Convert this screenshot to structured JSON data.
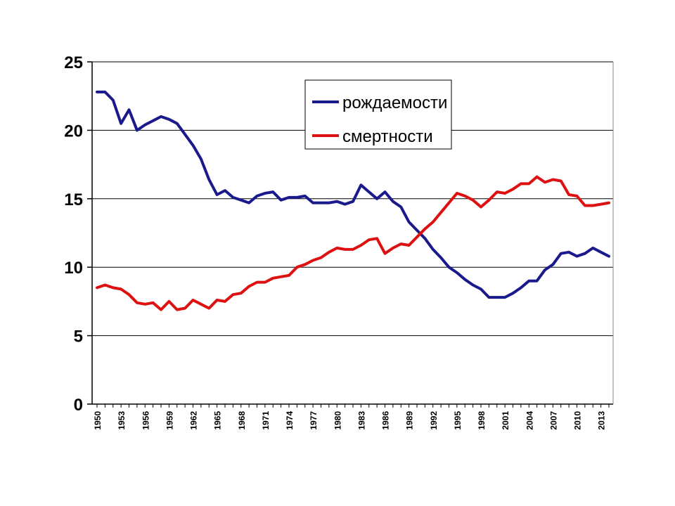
{
  "chart_data": {
    "type": "line",
    "title": "",
    "xlabel": "",
    "ylabel": "",
    "ylim": [
      0,
      25
    ],
    "yticks": [
      0,
      5,
      10,
      15,
      20,
      25
    ],
    "grid": true,
    "legend_position": "top-center",
    "x": [
      1950,
      1951,
      1952,
      1953,
      1954,
      1955,
      1956,
      1957,
      1958,
      1959,
      1960,
      1961,
      1962,
      1963,
      1964,
      1965,
      1966,
      1967,
      1968,
      1969,
      1970,
      1971,
      1972,
      1973,
      1974,
      1975,
      1976,
      1977,
      1978,
      1979,
      1980,
      1981,
      1982,
      1983,
      1984,
      1985,
      1986,
      1987,
      1988,
      1989,
      1990,
      1991,
      1992,
      1993,
      1994,
      1995,
      1996,
      1997,
      1998,
      1999,
      2000,
      2001,
      2002,
      2003,
      2004,
      2005,
      2006,
      2007,
      2008,
      2009,
      2010,
      2011,
      2012,
      2013,
      2014
    ],
    "x_tick_labels": [
      "1950",
      "1953",
      "1956",
      "1959",
      "1962",
      "1965",
      "1968",
      "1971",
      "1974",
      "1977",
      "1980",
      "1983",
      "1986",
      "1989",
      "1992",
      "1995",
      "1998",
      "2001",
      "2004",
      "2007",
      "2010",
      "2013"
    ],
    "x_tick_years": [
      1950,
      1953,
      1956,
      1959,
      1962,
      1965,
      1968,
      1971,
      1974,
      1977,
      1980,
      1983,
      1986,
      1989,
      1992,
      1995,
      1998,
      2001,
      2004,
      2007,
      2010,
      2013
    ],
    "series": [
      {
        "name": "рождаемости",
        "color": "#1a1a8c",
        "values": [
          22.8,
          22.8,
          22.2,
          20.5,
          21.5,
          20.0,
          20.4,
          20.7,
          21.0,
          20.8,
          20.5,
          19.7,
          18.9,
          17.9,
          16.4,
          15.3,
          15.6,
          15.1,
          14.9,
          14.7,
          15.2,
          15.4,
          15.5,
          14.9,
          15.1,
          15.1,
          15.2,
          14.7,
          14.7,
          14.7,
          14.8,
          14.6,
          14.8,
          16.0,
          15.5,
          15.0,
          15.5,
          14.8,
          14.4,
          13.3,
          12.7,
          12.1,
          11.3,
          10.7,
          10.0,
          9.6,
          9.1,
          8.7,
          8.4,
          7.8,
          7.8,
          7.8,
          8.1,
          8.5,
          9.0,
          9.0,
          9.8,
          10.2,
          11.0,
          11.1,
          10.8,
          11.0,
          11.4,
          11.1,
          10.8
        ]
      },
      {
        "name": "смертности",
        "color": "#dd1111",
        "values": [
          8.5,
          8.7,
          8.5,
          8.4,
          8.0,
          7.4,
          7.3,
          7.4,
          6.9,
          7.5,
          6.9,
          7.0,
          7.6,
          7.3,
          7.0,
          7.6,
          7.5,
          8.0,
          8.1,
          8.6,
          8.9,
          8.9,
          9.2,
          9.3,
          9.4,
          10.0,
          10.2,
          10.5,
          10.7,
          11.1,
          11.4,
          11.3,
          11.3,
          11.6,
          12.0,
          12.1,
          11.0,
          11.4,
          11.7,
          11.6,
          12.2,
          12.8,
          13.3,
          14.0,
          14.7,
          15.4,
          15.2,
          14.9,
          14.4,
          14.9,
          15.5,
          15.4,
          15.7,
          16.1,
          16.1,
          16.6,
          16.2,
          16.4,
          16.3,
          15.3,
          15.2,
          14.5,
          14.5,
          14.6,
          14.7
        ]
      }
    ]
  }
}
